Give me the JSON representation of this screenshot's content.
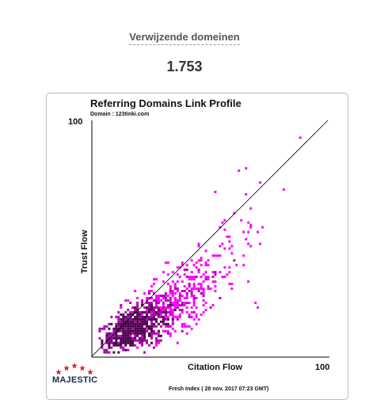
{
  "header": {
    "title": "Verwijzende domeinen",
    "count": "1.753"
  },
  "chart_data": {
    "type": "heatmap",
    "title": "Referring Domains Link Profile",
    "subtitle": "Domain : 123tinki.com",
    "xlabel": "Citation Flow",
    "ylabel": "Trust Flow",
    "xlim": [
      0,
      100
    ],
    "ylim": [
      0,
      100
    ],
    "x_max_label": "100",
    "y_max_label": "100",
    "diagonal_reference_line": true,
    "footer": "Fresh Index ( 28 nov. 2017 07:23 GMT)",
    "cell_colors": {
      "low": "#ff00ff",
      "mid": "#b000b0",
      "high": "#4a004a"
    },
    "clusters": [
      {
        "cf": 14,
        "tf": 10,
        "spread": 8,
        "count": 380,
        "color_level": "high"
      },
      {
        "cf": 22,
        "tf": 13,
        "spread": 11,
        "count": 360,
        "color_level": "mid"
      },
      {
        "cf": 32,
        "tf": 20,
        "spread": 14,
        "count": 240,
        "color_level": "low"
      },
      {
        "cf": 44,
        "tf": 30,
        "spread": 14,
        "count": 110,
        "color_level": "low"
      },
      {
        "cf": 58,
        "tf": 45,
        "spread": 12,
        "count": 40,
        "color_level": "low"
      }
    ],
    "outliers": [
      {
        "cf": 88,
        "tf": 92
      },
      {
        "cf": 62,
        "tf": 78
      },
      {
        "cf": 65,
        "tf": 79
      },
      {
        "cf": 81,
        "tf": 70
      },
      {
        "cf": 71,
        "tf": 73
      },
      {
        "cf": 65,
        "tf": 68
      },
      {
        "cf": 52,
        "tf": 69
      },
      {
        "cf": 60,
        "tf": 60
      },
      {
        "cf": 67,
        "tf": 62
      },
      {
        "cf": 66,
        "tf": 52
      },
      {
        "cf": 72,
        "tf": 54
      },
      {
        "cf": 63,
        "tf": 57
      },
      {
        "cf": 69,
        "tf": 22
      },
      {
        "cf": 70,
        "tf": 20
      }
    ]
  },
  "brand": {
    "logo_text": "MAJESTIC",
    "star_color": "#d9232d"
  }
}
